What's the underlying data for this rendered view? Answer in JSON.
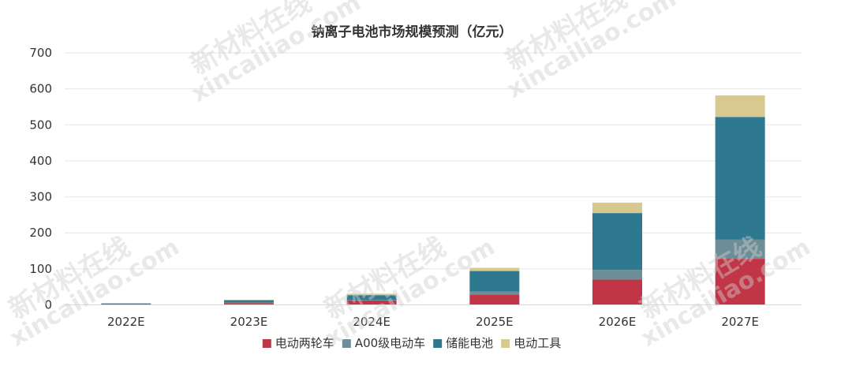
{
  "chart_data": {
    "type": "bar",
    "stacked": true,
    "title": "钠离子电池市场规模预测（亿元）",
    "xlabel": "",
    "ylabel": "",
    "categories": [
      "2022E",
      "2023E",
      "2024E",
      "2025E",
      "2026E",
      "2027E"
    ],
    "ylim": [
      0,
      700
    ],
    "yticks": [
      0,
      100,
      200,
      300,
      400,
      500,
      600,
      700
    ],
    "grid": true,
    "legend_position": "bottom",
    "series": [
      {
        "name": "电动两轮车",
        "color": "#c23547",
        "values": [
          1,
          5,
          12,
          29,
          70,
          128
        ]
      },
      {
        "name": "A00级电动车",
        "color": "#6e8e97",
        "values": [
          0,
          1,
          2,
          8,
          27,
          53
        ]
      },
      {
        "name": "储能电池",
        "color": "#2e7890",
        "values": [
          3,
          7,
          13,
          57,
          158,
          341
        ]
      },
      {
        "name": "电动工具",
        "color": "#d8c98e",
        "values": [
          0,
          1,
          4,
          9,
          29,
          60
        ]
      }
    ]
  },
  "watermark": {
    "cn": "新材料在线",
    "en": "xincailiao.com"
  }
}
